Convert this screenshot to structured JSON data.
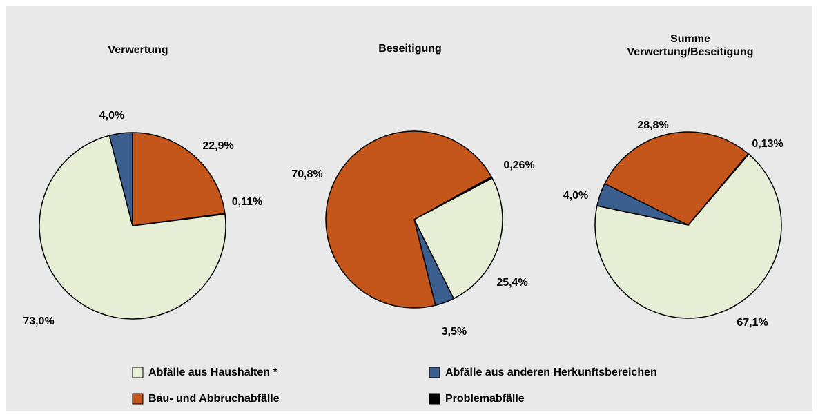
{
  "chart_data": [
    {
      "type": "pie",
      "title": "Verwertung",
      "categories": [
        "Abfälle aus Haushalten *",
        "Abfälle aus anderen Herkunftsbereichen",
        "Bau- und Abbruchabfälle",
        "Problemabfälle"
      ],
      "values": [
        73.0,
        4.0,
        22.9,
        0.11
      ],
      "value_labels": [
        "73,0%",
        "4,0%",
        "22,9%",
        "0,11%"
      ],
      "colors": [
        "#e6efd5",
        "#3a5f8f",
        "#c4561b",
        "#000000"
      ]
    },
    {
      "type": "pie",
      "title": "Beseitigung",
      "categories": [
        "Abfälle aus Haushalten *",
        "Abfälle aus anderen Herkunftsbereichen",
        "Bau- und Abbruchabfälle",
        "Problemabfälle"
      ],
      "values": [
        25.4,
        3.5,
        70.8,
        0.26
      ],
      "value_labels": [
        "25,4%",
        "3,5%",
        "70,8%",
        "0,26%"
      ],
      "colors": [
        "#e6efd5",
        "#3a5f8f",
        "#c4561b",
        "#000000"
      ]
    },
    {
      "type": "pie",
      "title": "Summe Verwertung/Beseitigung",
      "categories": [
        "Abfälle aus Haushalten *",
        "Abfälle aus anderen Herkunftsbereichen",
        "Bau- und Abbruchabfälle",
        "Problemabfälle"
      ],
      "values": [
        67.1,
        4.0,
        28.8,
        0.13
      ],
      "value_labels": [
        "67,1%",
        "4,0%",
        "28,8%",
        "0,13%"
      ],
      "colors": [
        "#e6efd5",
        "#3a5f8f",
        "#c4561b",
        "#000000"
      ]
    }
  ]
}
